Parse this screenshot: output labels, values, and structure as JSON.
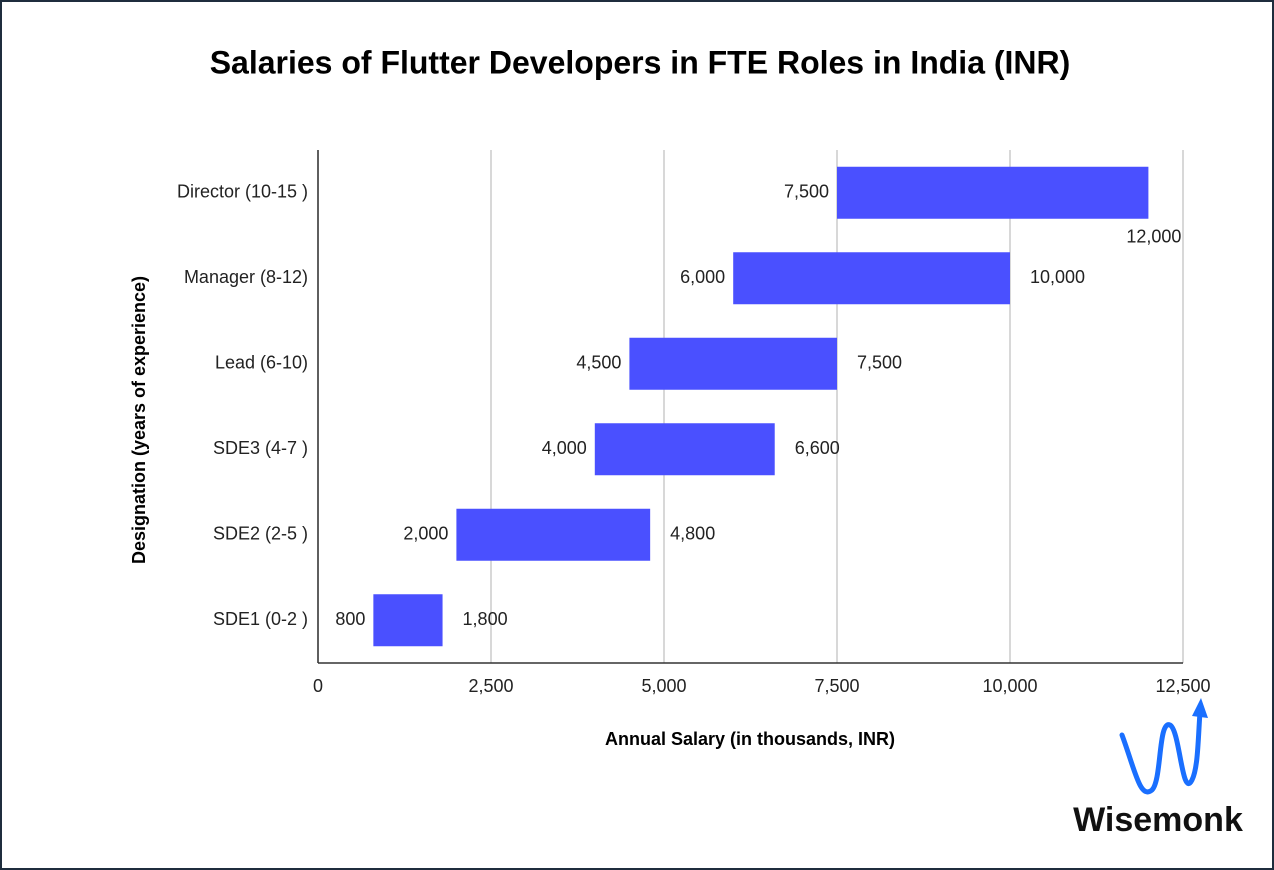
{
  "chart_data": {
    "type": "range_bar",
    "title": "Salaries of Flutter Developers in FTE Roles in India (INR)",
    "x_label": "Annual Salary (in thousands, INR)",
    "y_label": "Designation (years of experience)",
    "categories": [
      "Director (10-15 )",
      "Manager (8-12)",
      "Lead (6-10)",
      "SDE3 (4-7 )",
      "SDE2 (2-5 )",
      "SDE1 (0-2 )"
    ],
    "color": "#4a50ff",
    "series": [
      {
        "values": [
          7500,
          6000,
          4500,
          4000,
          2000,
          800
        ],
        "value_labels": [
          "7,500",
          "6,000",
          "4,500",
          "4,000",
          "2,000",
          "800"
        ]
      },
      {
        "values": [
          12000,
          10000,
          7500,
          6600,
          4800,
          1800
        ],
        "value_labels": [
          "12,000",
          "10,000",
          "7,500",
          "6,600",
          "4,800",
          "1,800"
        ]
      }
    ],
    "xlim": [
      0,
      12500
    ],
    "xticks": [
      0,
      {
        "value": 2500,
        "label": "2,500"
      },
      {
        "value": 5000,
        "label": "5,000"
      },
      {
        "value": 7500,
        "label": "7,500"
      },
      {
        "value": 10000,
        "label": "10,000"
      },
      {
        "value": 12500,
        "label": "12,500"
      }
    ],
    "grid": true
  },
  "logo": "Wisemonk"
}
